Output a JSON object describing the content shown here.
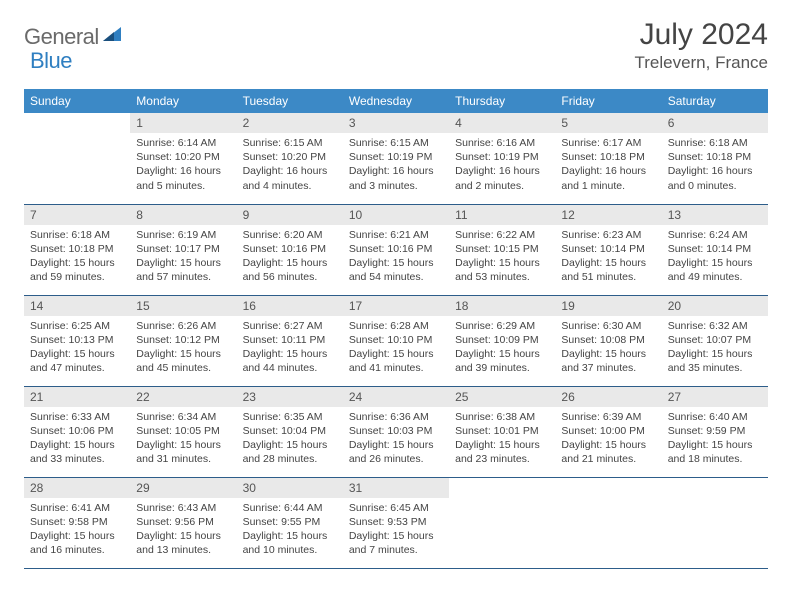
{
  "logo": {
    "part1": "General",
    "part2": "Blue"
  },
  "title": "July 2024",
  "location": "Trelevern, France",
  "colors": {
    "header_bg": "#3c89c6",
    "row_border": "#2d5d8a",
    "daynum_bg": "#e9e9e9",
    "logo_gray": "#6a6a6a",
    "logo_blue": "#2f7fc1"
  },
  "weekdays": [
    "Sunday",
    "Monday",
    "Tuesday",
    "Wednesday",
    "Thursday",
    "Friday",
    "Saturday"
  ],
  "days": [
    {
      "n": 1,
      "sunrise": "6:14 AM",
      "sunset": "10:20 PM",
      "daylight": "16 hours and 5 minutes."
    },
    {
      "n": 2,
      "sunrise": "6:15 AM",
      "sunset": "10:20 PM",
      "daylight": "16 hours and 4 minutes."
    },
    {
      "n": 3,
      "sunrise": "6:15 AM",
      "sunset": "10:19 PM",
      "daylight": "16 hours and 3 minutes."
    },
    {
      "n": 4,
      "sunrise": "6:16 AM",
      "sunset": "10:19 PM",
      "daylight": "16 hours and 2 minutes."
    },
    {
      "n": 5,
      "sunrise": "6:17 AM",
      "sunset": "10:18 PM",
      "daylight": "16 hours and 1 minute."
    },
    {
      "n": 6,
      "sunrise": "6:18 AM",
      "sunset": "10:18 PM",
      "daylight": "16 hours and 0 minutes."
    },
    {
      "n": 7,
      "sunrise": "6:18 AM",
      "sunset": "10:18 PM",
      "daylight": "15 hours and 59 minutes."
    },
    {
      "n": 8,
      "sunrise": "6:19 AM",
      "sunset": "10:17 PM",
      "daylight": "15 hours and 57 minutes."
    },
    {
      "n": 9,
      "sunrise": "6:20 AM",
      "sunset": "10:16 PM",
      "daylight": "15 hours and 56 minutes."
    },
    {
      "n": 10,
      "sunrise": "6:21 AM",
      "sunset": "10:16 PM",
      "daylight": "15 hours and 54 minutes."
    },
    {
      "n": 11,
      "sunrise": "6:22 AM",
      "sunset": "10:15 PM",
      "daylight": "15 hours and 53 minutes."
    },
    {
      "n": 12,
      "sunrise": "6:23 AM",
      "sunset": "10:14 PM",
      "daylight": "15 hours and 51 minutes."
    },
    {
      "n": 13,
      "sunrise": "6:24 AM",
      "sunset": "10:14 PM",
      "daylight": "15 hours and 49 minutes."
    },
    {
      "n": 14,
      "sunrise": "6:25 AM",
      "sunset": "10:13 PM",
      "daylight": "15 hours and 47 minutes."
    },
    {
      "n": 15,
      "sunrise": "6:26 AM",
      "sunset": "10:12 PM",
      "daylight": "15 hours and 45 minutes."
    },
    {
      "n": 16,
      "sunrise": "6:27 AM",
      "sunset": "10:11 PM",
      "daylight": "15 hours and 44 minutes."
    },
    {
      "n": 17,
      "sunrise": "6:28 AM",
      "sunset": "10:10 PM",
      "daylight": "15 hours and 41 minutes."
    },
    {
      "n": 18,
      "sunrise": "6:29 AM",
      "sunset": "10:09 PM",
      "daylight": "15 hours and 39 minutes."
    },
    {
      "n": 19,
      "sunrise": "6:30 AM",
      "sunset": "10:08 PM",
      "daylight": "15 hours and 37 minutes."
    },
    {
      "n": 20,
      "sunrise": "6:32 AM",
      "sunset": "10:07 PM",
      "daylight": "15 hours and 35 minutes."
    },
    {
      "n": 21,
      "sunrise": "6:33 AM",
      "sunset": "10:06 PM",
      "daylight": "15 hours and 33 minutes."
    },
    {
      "n": 22,
      "sunrise": "6:34 AM",
      "sunset": "10:05 PM",
      "daylight": "15 hours and 31 minutes."
    },
    {
      "n": 23,
      "sunrise": "6:35 AM",
      "sunset": "10:04 PM",
      "daylight": "15 hours and 28 minutes."
    },
    {
      "n": 24,
      "sunrise": "6:36 AM",
      "sunset": "10:03 PM",
      "daylight": "15 hours and 26 minutes."
    },
    {
      "n": 25,
      "sunrise": "6:38 AM",
      "sunset": "10:01 PM",
      "daylight": "15 hours and 23 minutes."
    },
    {
      "n": 26,
      "sunrise": "6:39 AM",
      "sunset": "10:00 PM",
      "daylight": "15 hours and 21 minutes."
    },
    {
      "n": 27,
      "sunrise": "6:40 AM",
      "sunset": "9:59 PM",
      "daylight": "15 hours and 18 minutes."
    },
    {
      "n": 28,
      "sunrise": "6:41 AM",
      "sunset": "9:58 PM",
      "daylight": "15 hours and 16 minutes."
    },
    {
      "n": 29,
      "sunrise": "6:43 AM",
      "sunset": "9:56 PM",
      "daylight": "15 hours and 13 minutes."
    },
    {
      "n": 30,
      "sunrise": "6:44 AM",
      "sunset": "9:55 PM",
      "daylight": "15 hours and 10 minutes."
    },
    {
      "n": 31,
      "sunrise": "6:45 AM",
      "sunset": "9:53 PM",
      "daylight": "15 hours and 7 minutes."
    }
  ]
}
